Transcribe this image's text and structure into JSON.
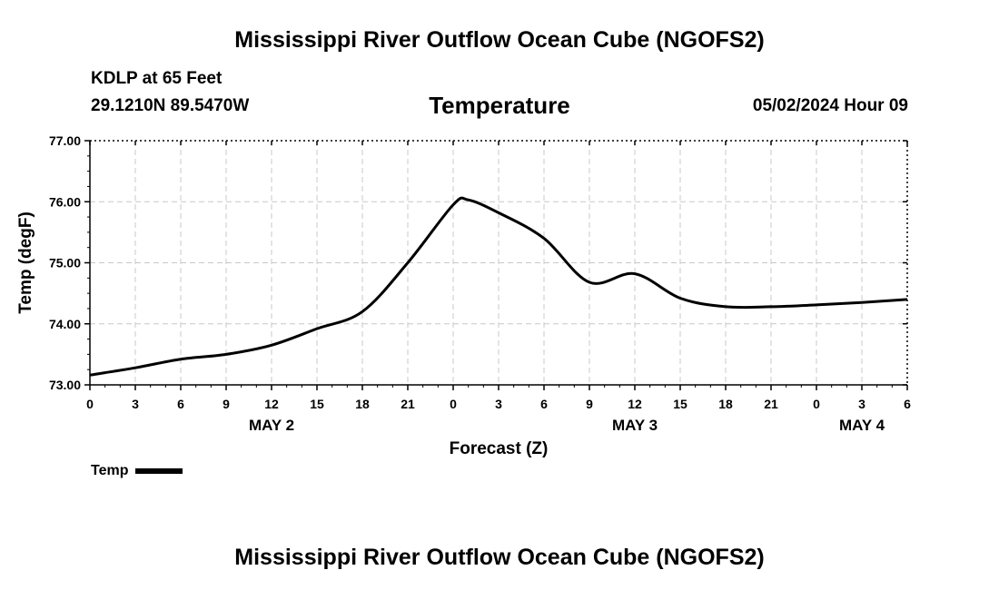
{
  "header": {
    "title": "Mississippi River Outflow Ocean Cube (NGOFS2)",
    "station": "KDLP at 65 Feet",
    "coords": "29.1210N  89.5470W",
    "variable": "Temperature",
    "datetime": "05/02/2024 Hour 09"
  },
  "footer": {
    "title": "Mississippi River Outflow Ocean Cube (NGOFS2)"
  },
  "legend": {
    "label": "Temp",
    "color": "#000000"
  },
  "chart_data": {
    "type": "line",
    "title": "Temperature",
    "xlabel": "Forecast (Z)",
    "ylabel": "Temp (degF)",
    "xlim": [
      0,
      54
    ],
    "ylim": [
      73.0,
      77.0
    ],
    "grid": true,
    "legend_position": "bottom-left",
    "x_ticks": [
      0,
      3,
      6,
      9,
      12,
      15,
      18,
      21,
      24,
      27,
      30,
      33,
      36,
      39,
      42,
      45,
      48,
      51,
      54
    ],
    "x_tick_labels": [
      "0",
      "3",
      "6",
      "9",
      "12",
      "15",
      "18",
      "21",
      "0",
      "3",
      "6",
      "9",
      "12",
      "15",
      "18",
      "21",
      "0",
      "3",
      "6"
    ],
    "y_ticks": [
      73.0,
      74.0,
      75.0,
      76.0,
      77.0
    ],
    "y_tick_labels": [
      "73.00",
      "74.00",
      "75.00",
      "76.00",
      "77.00"
    ],
    "day_labels": [
      {
        "x": 12,
        "label": "MAY 2"
      },
      {
        "x": 36,
        "label": "MAY 3"
      },
      {
        "x": 51,
        "label": "MAY 4"
      }
    ],
    "series": [
      {
        "name": "Temp",
        "color": "#000000",
        "x": [
          0,
          3,
          6,
          9,
          12,
          15,
          18,
          21,
          24,
          25,
          27,
          30,
          33,
          36,
          39,
          42,
          45,
          48,
          51,
          54
        ],
        "values": [
          73.16,
          73.28,
          73.42,
          73.5,
          73.65,
          73.92,
          74.2,
          75.0,
          75.95,
          76.03,
          75.82,
          75.4,
          74.68,
          74.82,
          74.42,
          74.28,
          74.28,
          74.31,
          74.35,
          74.4
        ]
      }
    ]
  }
}
